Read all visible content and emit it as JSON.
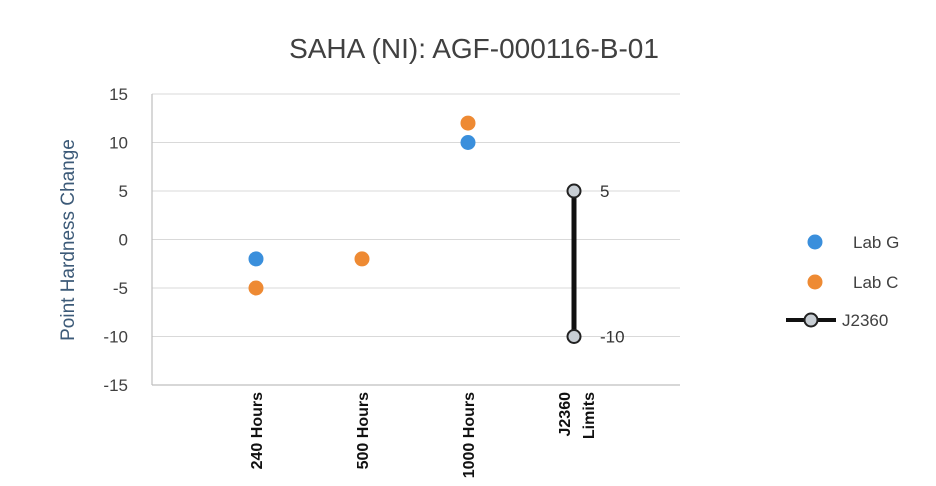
{
  "chart_data": {
    "type": "scatter",
    "title": "SAHA (NI): AGF-000116-B-01",
    "ylabel": "Point Hardness Change",
    "xlabel": "",
    "categories": [
      "240 Hours",
      "500 Hours",
      "1000 Hours",
      "J2360 Limits"
    ],
    "ylim": [
      -15,
      15
    ],
    "yticks": [
      15,
      10,
      5,
      0,
      -5,
      -10,
      -15
    ],
    "grid": true,
    "legend_position": "right",
    "series": [
      {
        "name": "Lab G",
        "type": "scatter",
        "color": "#3a8fdc",
        "points": [
          {
            "x": "240 Hours",
            "y": -2
          },
          {
            "x": "1000 Hours",
            "y": 10
          }
        ]
      },
      {
        "name": "Lab C",
        "type": "scatter",
        "color": "#ee8a33",
        "points": [
          {
            "x": "240 Hours",
            "y": -5
          },
          {
            "x": "500 Hours",
            "y": -2
          },
          {
            "x": "1000 Hours",
            "y": 12
          }
        ]
      },
      {
        "name": "J2360",
        "type": "range",
        "color": "#111111",
        "points": [
          {
            "x": "J2360 Limits",
            "y": 5
          },
          {
            "x": "J2360 Limits",
            "y": -10
          }
        ]
      }
    ],
    "annotations": [
      {
        "x": "J2360 Limits",
        "y": 5,
        "text": "5"
      },
      {
        "x": "J2360 Limits",
        "y": -10,
        "text": "-10"
      }
    ]
  }
}
